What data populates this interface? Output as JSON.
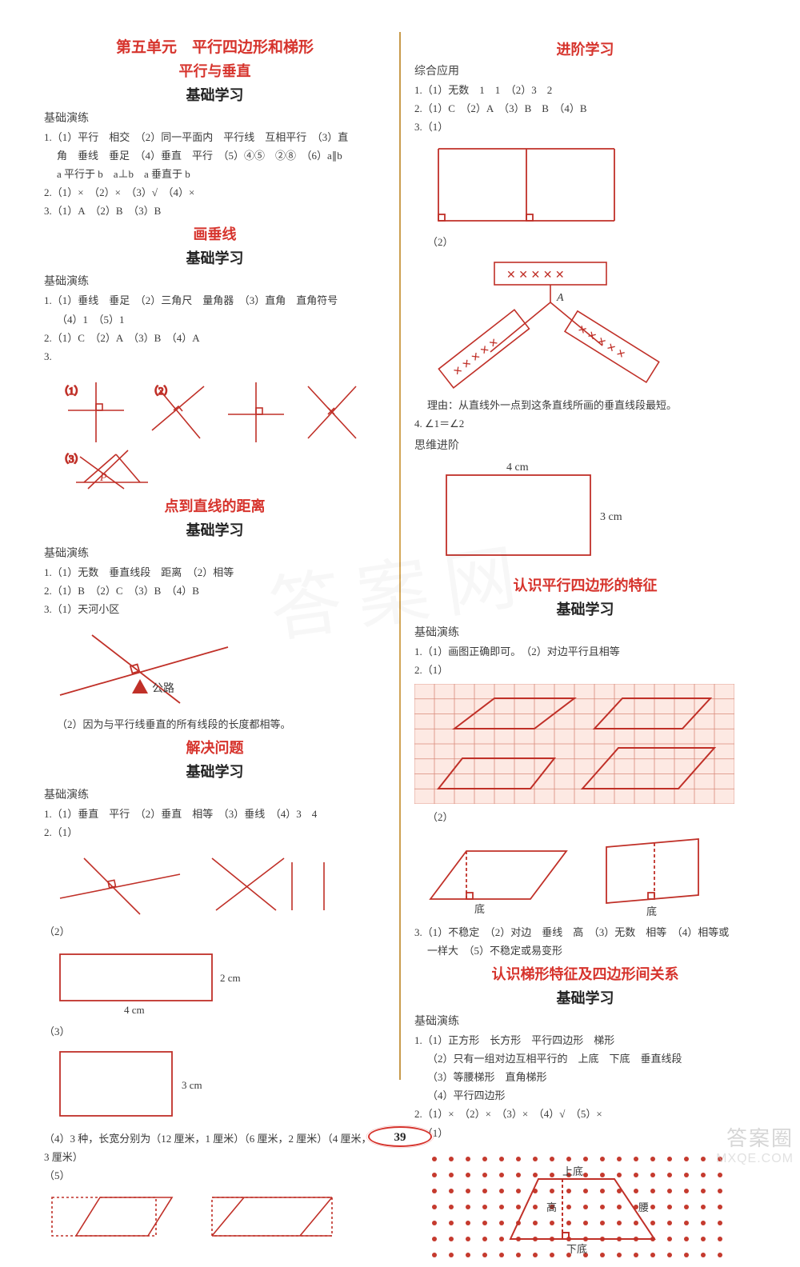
{
  "colors": {
    "red": "#d6332c",
    "stroke_red": "#c03028",
    "text": "#3a3a3a",
    "divider": "#c79a4b",
    "grid_bg": "#fde9e3",
    "grid_line": "#d98a7a",
    "dot": "#c53a2e"
  },
  "page_number": "39",
  "watermark": {
    "brand": "答案圈",
    "url": "MXQE.COM"
  },
  "left": {
    "unit_title": "第五单元　平行四边形和梯形",
    "s1": {
      "heading_red": "平行与垂直",
      "heading_study": "基础学习",
      "label": "基础演练",
      "l1": "1.（1）平行　相交　（2）同一平面内　平行线　互相平行　（3）直",
      "l1b": "角　垂线　垂足　（4）垂直　平行　（5）④⑤　②⑧　（6）a∥b",
      "l1c": "a 平行于 b　a⊥b　a 垂直于 b",
      "l2": "2.（1）×　（2）×　（3）√　（4）×",
      "l3": "3.（1）A　（2）B　（3）B"
    },
    "s2": {
      "heading_red": "画垂线",
      "heading_study": "基础学习",
      "label": "基础演练",
      "l1": "1.（1）垂线　垂足　（2）三角尺　量角器　（3）直角　直角符号",
      "l1b": "（4）1　（5）1",
      "l2": "2.（1）C　（2）A　（3）B　（4）A",
      "l3": "3.",
      "fig_labels": {
        "a": "（1）",
        "b": "（2）",
        "c": "（3）",
        "p": "P"
      }
    },
    "s3": {
      "heading_red": "点到直线的距离",
      "heading_study": "基础学习",
      "label": "基础演练",
      "l1": "1.（1）无数　垂直线段　距离　（2）相等",
      "l2": "2.（1）B　（2）C　（3）B　（4）B",
      "l3": "3.（1）天河小区",
      "fig_road": "公路",
      "l4": "（2）因为与平行线垂直的所有线段的长度都相等。"
    },
    "s4": {
      "heading_red": "解决问题",
      "heading_study": "基础学习",
      "label": "基础演练",
      "l1": "1.（1）垂直　平行　（2）垂直　相等　（3）垂线　（4）3　4",
      "l2": "2.（1）",
      "rect2": {
        "w": "4 cm",
        "h": "2 cm",
        "label": "（2）"
      },
      "rect3": {
        "h": "3 cm",
        "label": "（3）"
      },
      "l3": "（4）3 种，长宽分别为（12 厘米，1 厘米）（6 厘米，2 厘米）（4 厘米，",
      "l3b": "3 厘米）",
      "l4": "（5）"
    }
  },
  "right": {
    "s1": {
      "heading_red": "进阶学习",
      "label": "综合应用",
      "l1": "1.（1）无数　1　1　（2）3　2",
      "l2": "2.（1）C　（2）A　（3）B　B　（4）B",
      "l3": "3.（1）",
      "l3b": "（2）",
      "label_A": "A",
      "reason": "理由：从直线外一点到这条直线所画的垂直线段最短。",
      "l4": "4. ∠1＝∠2",
      "label_think": "思维进阶",
      "rect": {
        "w": "4 cm",
        "h": "3 cm"
      }
    },
    "s2": {
      "heading_red": "认识平行四边形的特征",
      "heading_study": "基础学习",
      "label": "基础演练",
      "l1": "1.（1）画图正确即可。　（2）对边平行且相等",
      "l2": "2.（1）",
      "l2b": "（2）",
      "bottom_label": "底",
      "l3": "3.（1）不稳定　（2）对边　垂线　高　（3）无数　相等　（4）相等或",
      "l3b": "一样大　（5）不稳定或易变形"
    },
    "s3": {
      "heading_red": "认识梯形特征及四边形间关系",
      "heading_study": "基础学习",
      "label": "基础演练",
      "l1": "1.（1）正方形　长方形　平行四边形　梯形",
      "l1b": "（2）只有一组对边互相平行的　上底　下底　垂直线段",
      "l1c": "（3）等腰梯形　直角梯形",
      "l1d": "（4）平行四边形",
      "l2": "2.（1）×　（2）×　（3）×　（4）√　（5）×",
      "l3": "3.（1）",
      "trap": {
        "top": "上底",
        "bottom": "下底",
        "h": "高",
        "side": "腰"
      }
    }
  }
}
